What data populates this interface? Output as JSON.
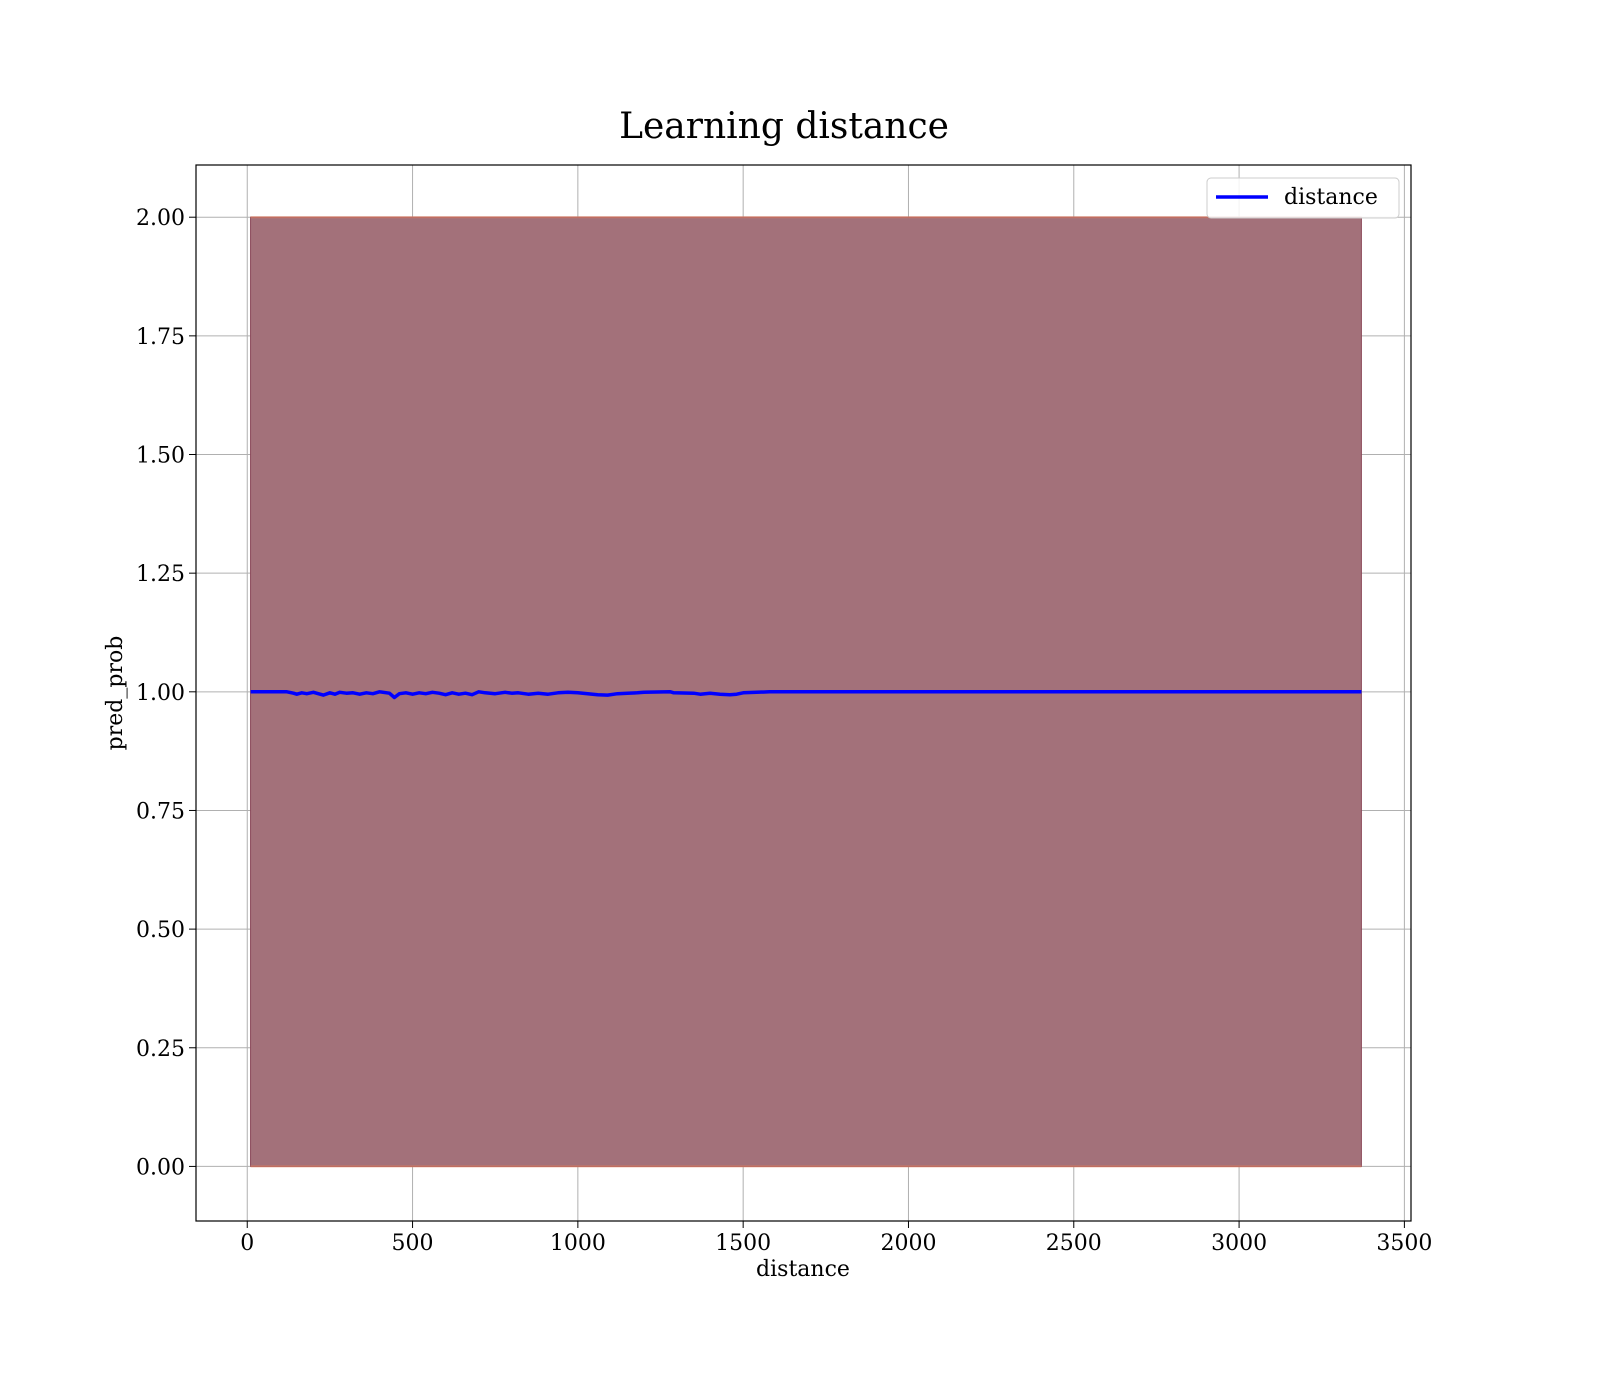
{
  "chart_data": {
    "type": "line",
    "title": "Learning distance",
    "xlabel": "distance",
    "ylabel": "pred_prob",
    "xlim": [
      -155,
      3520
    ],
    "ylim": [
      -0.115,
      2.11
    ],
    "x_ticks": [
      0,
      500,
      1000,
      1500,
      2000,
      2500,
      3000,
      3500
    ],
    "y_ticks": [
      0.0,
      0.25,
      0.5,
      0.75,
      1.0,
      1.25,
      1.5,
      1.75,
      2.0
    ],
    "x_tick_labels": [
      "0",
      "500",
      "1000",
      "1500",
      "2000",
      "2500",
      "3000",
      "3500"
    ],
    "y_tick_labels": [
      "0.00",
      "0.25",
      "0.50",
      "0.75",
      "1.00",
      "1.25",
      "1.50",
      "1.75",
      "2.00"
    ],
    "grid": true,
    "legend": {
      "position": "top-right",
      "entries": [
        "distance"
      ]
    },
    "colors": {
      "line": "#0000ff",
      "band": "#a3717a",
      "band_edge": "#e08060",
      "grid": "#b0b0b0"
    },
    "series": [
      {
        "name": "distance",
        "kind": "line",
        "x": [
          10,
          120,
          140,
          150,
          165,
          180,
          200,
          215,
          230,
          250,
          265,
          280,
          300,
          320,
          340,
          360,
          380,
          400,
          430,
          445,
          460,
          480,
          500,
          520,
          540,
          560,
          580,
          600,
          620,
          640,
          660,
          680,
          700,
          720,
          750,
          780,
          800,
          820,
          850,
          880,
          910,
          940,
          970,
          1000,
          1030,
          1060,
          1090,
          1120,
          1150,
          1180,
          1200,
          1280,
          1290,
          1350,
          1370,
          1400,
          1430,
          1460,
          1480,
          1500,
          1580,
          1700,
          2000,
          2500,
          3000,
          3370
        ],
        "y": [
          1.0,
          1.0,
          0.997,
          0.995,
          0.998,
          0.996,
          0.999,
          0.996,
          0.993,
          0.998,
          0.995,
          0.999,
          0.997,
          0.998,
          0.995,
          0.998,
          0.996,
          1.0,
          0.997,
          0.988,
          0.996,
          0.998,
          0.995,
          0.998,
          0.996,
          0.999,
          0.997,
          0.994,
          0.998,
          0.995,
          0.997,
          0.994,
          1.0,
          0.998,
          0.996,
          0.999,
          0.997,
          0.998,
          0.995,
          0.997,
          0.995,
          0.998,
          0.999,
          0.998,
          0.996,
          0.994,
          0.993,
          0.996,
          0.997,
          0.998,
          0.999,
          1.0,
          0.998,
          0.997,
          0.995,
          0.997,
          0.995,
          0.994,
          0.995,
          0.998,
          1.0,
          1.0,
          1.0,
          1.0,
          1.0,
          1.0
        ]
      },
      {
        "name": "band",
        "kind": "fill_between",
        "x": [
          10,
          3370
        ],
        "lower": [
          0.0,
          0.0
        ],
        "upper": [
          2.0,
          2.0
        ]
      }
    ]
  }
}
